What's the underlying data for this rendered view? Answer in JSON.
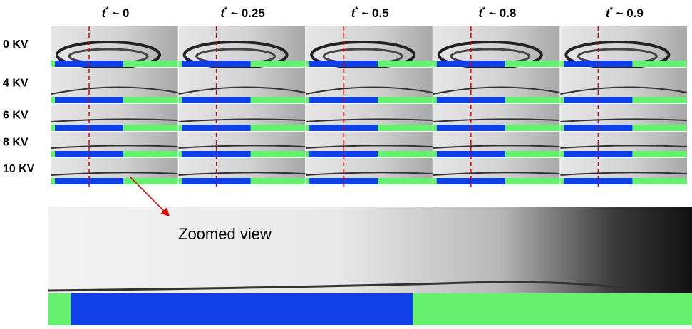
{
  "figure": {
    "columns": [
      {
        "base": "t",
        "sup": "*",
        "rest": " ~ 0"
      },
      {
        "base": "t",
        "sup": "*",
        "rest": " ~ 0.25"
      },
      {
        "base": "t",
        "sup": "*",
        "rest": " ~ 0.5"
      },
      {
        "base": "t",
        "sup": "*",
        "rest": " ~ 0.8"
      },
      {
        "base": "t",
        "sup": "*",
        "rest": " ~ 0.9"
      }
    ],
    "rows": [
      "0 KV",
      "4 KV",
      "6 KV",
      "8 KV",
      "10 KV"
    ],
    "zoom_label": "Zoomed view"
  }
}
